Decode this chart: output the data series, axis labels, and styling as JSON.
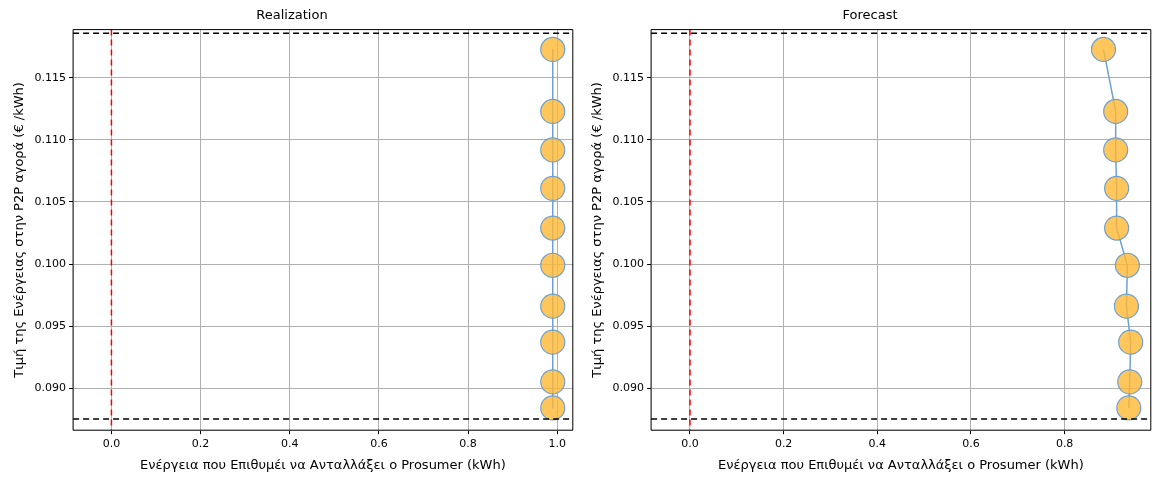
{
  "chart_data": [
    {
      "type": "line",
      "title": "Realization",
      "xlabel": "Ενέργεια που Επιθυμέι να Ανταλλάξει ο Prosumer (kWh)",
      "ylabel": "Τιμή της Ενέργειας στην P2P αγορά (€ /kWh)",
      "marker": "circle",
      "grid": true,
      "legend": false,
      "x": [
        0.99,
        0.99,
        0.99,
        0.99,
        0.99,
        0.99,
        0.99,
        0.99,
        0.99,
        0.99
      ],
      "series": [
        {
          "color": "#6fa0cf",
          "colors": [
            "#ffb833",
            "#ffb833",
            "#ffb833",
            "#ffb833",
            "#ffb833",
            "#ffb833",
            "#ffb833",
            "#ffb833",
            "#ffb833",
            "#ffb833"
          ],
          "values": [
            0.1173,
            0.1123,
            0.1092,
            0.1061,
            0.1029,
            0.0999,
            0.0966,
            0.0937,
            0.0905,
            0.0884
          ]
        }
      ],
      "xlim": [
        -0.086,
        1.035
      ],
      "ylim": [
        0.0866,
        0.1189
      ],
      "xticks": [
        {
          "value": 0,
          "label": "0.0"
        },
        {
          "value": 0.2,
          "label": "0.2"
        },
        {
          "value": 0.4,
          "label": "0.4"
        },
        {
          "value": 0.6,
          "label": "0.6"
        },
        {
          "value": 0.8,
          "label": "0.8"
        },
        {
          "value": 1,
          "label": "1.0"
        }
      ],
      "yticks": [
        {
          "value": 0.09,
          "label": "0.090"
        },
        0.095,
        {
          "value": 0.1,
          "label": "0.100"
        },
        0.105,
        {
          "value": 0.11,
          "label": "0.110"
        },
        0.115
      ],
      "ref_lines": [
        {
          "axis": "x",
          "value": 0,
          "color": "#ff0000",
          "line_style": "dashed"
        },
        {
          "axis": "y",
          "value": 0.1186,
          "color": "#000000",
          "line_style": "dashed"
        },
        {
          "axis": "y",
          "value": 0.0875,
          "color": "#000000",
          "line_style": "dashed"
        }
      ]
    },
    {
      "type": "line",
      "title": "Forecast",
      "xlabel": "Ενέργεια που Επιθυμέι να Ανταλλάξει ο Prosumer (kWh)",
      "ylabel": "Τιμή της Ενέργειας στην P2P αγορά (€ /kWh)",
      "marker": "circle",
      "grid": true,
      "legend": false,
      "x": [
        0.883,
        0.909,
        0.909,
        0.911,
        0.911,
        0.934,
        0.932,
        0.941,
        0.939,
        0.937
      ],
      "series": [
        {
          "color": "#6fa0cf",
          "colors": [
            "#ffb833",
            "#ffb833",
            "#ffb833",
            "#ffb833",
            "#ffb833",
            "#ffb833",
            "#ffb833",
            "#ffb833",
            "#ffb833",
            "#ffb833"
          ],
          "values": [
            0.1173,
            0.1123,
            0.1092,
            0.1061,
            0.1029,
            0.0999,
            0.0966,
            0.0937,
            0.0905,
            0.0884
          ]
        }
      ],
      "xlim": [
        -0.083,
        0.984
      ],
      "ylim": [
        0.0866,
        0.1189
      ],
      "xticks": [
        {
          "value": 0,
          "label": "0.0"
        },
        {
          "value": 0.2,
          "label": "0.2"
        },
        {
          "value": 0.4,
          "label": "0.4"
        },
        {
          "value": 0.6,
          "label": "0.6"
        },
        {
          "value": 0.8,
          "label": "0.8"
        }
      ],
      "yticks": [
        {
          "value": 0.09,
          "label": "0.090"
        },
        0.095,
        {
          "value": 0.1,
          "label": "0.100"
        },
        0.105,
        {
          "value": 0.11,
          "label": "0.110"
        },
        0.115
      ],
      "ref_lines": [
        {
          "axis": "x",
          "value": 0,
          "color": "#ff0000",
          "line_style": "dashed"
        },
        {
          "axis": "y",
          "value": 0.1186,
          "color": "#000000",
          "line_style": "dashed"
        },
        {
          "axis": "y",
          "value": 0.0875,
          "color": "#000000",
          "line_style": "dashed"
        }
      ]
    }
  ]
}
